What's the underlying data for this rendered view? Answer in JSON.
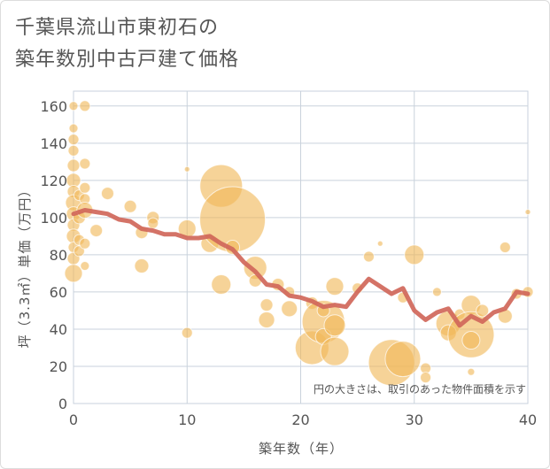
{
  "chart_data": {
    "type": "scatter",
    "title_lines": [
      "千葉県流山市東初石の",
      "築年数別中古戸建て価格"
    ],
    "xlabel": "築年数（年）",
    "ylabel": "坪（3.3㎡）単価（万円）",
    "xlim": [
      0,
      40
    ],
    "ylim": [
      0,
      168
    ],
    "xticks": [
      "0",
      "10",
      "20",
      "30",
      "40"
    ],
    "yticks": [
      "0",
      "20",
      "40",
      "60",
      "80",
      "100",
      "120",
      "140",
      "160"
    ],
    "annotation": "円の大きさは、取引のあった物件面積を示す",
    "colors": {
      "bubble": "#f0b858",
      "line": "#d0675a",
      "grid": "#c9d2dc",
      "text": "#555555"
    },
    "bubbles": [
      {
        "x": 0,
        "y": 160,
        "r": 5
      },
      {
        "x": 0,
        "y": 148,
        "r": 5
      },
      {
        "x": 0,
        "y": 142,
        "r": 6
      },
      {
        "x": 0,
        "y": 136,
        "r": 6
      },
      {
        "x": 0,
        "y": 128,
        "r": 7
      },
      {
        "x": 0,
        "y": 120,
        "r": 8
      },
      {
        "x": 0,
        "y": 114,
        "r": 7
      },
      {
        "x": 0,
        "y": 108,
        "r": 9
      },
      {
        "x": 0,
        "y": 102,
        "r": 8
      },
      {
        "x": 0,
        "y": 96,
        "r": 7
      },
      {
        "x": 0,
        "y": 90,
        "r": 8
      },
      {
        "x": 0,
        "y": 84,
        "r": 6
      },
      {
        "x": 0,
        "y": 78,
        "r": 7
      },
      {
        "x": 0,
        "y": 70,
        "r": 10
      },
      {
        "x": 0.5,
        "y": 112,
        "r": 6
      },
      {
        "x": 0.5,
        "y": 100,
        "r": 7
      },
      {
        "x": 0.5,
        "y": 88,
        "r": 6
      },
      {
        "x": 0.5,
        "y": 82,
        "r": 6
      },
      {
        "x": 1,
        "y": 160,
        "r": 6
      },
      {
        "x": 1,
        "y": 129,
        "r": 6
      },
      {
        "x": 1,
        "y": 116,
        "r": 6
      },
      {
        "x": 1,
        "y": 110,
        "r": 6
      },
      {
        "x": 1,
        "y": 104,
        "r": 9
      },
      {
        "x": 1,
        "y": 86,
        "r": 6
      },
      {
        "x": 1,
        "y": 74,
        "r": 5
      },
      {
        "x": 2,
        "y": 93,
        "r": 7
      },
      {
        "x": 3,
        "y": 113,
        "r": 7
      },
      {
        "x": 5,
        "y": 106,
        "r": 7
      },
      {
        "x": 6,
        "y": 92,
        "r": 7
      },
      {
        "x": 6,
        "y": 74,
        "r": 8
      },
      {
        "x": 7,
        "y": 100,
        "r": 7
      },
      {
        "x": 7,
        "y": 97,
        "r": 6
      },
      {
        "x": 10,
        "y": 94,
        "r": 10
      },
      {
        "x": 10,
        "y": 38,
        "r": 6
      },
      {
        "x": 10,
        "y": 126,
        "r": 3
      },
      {
        "x": 12,
        "y": 86,
        "r": 10
      },
      {
        "x": 13,
        "y": 117,
        "r": 24
      },
      {
        "x": 13,
        "y": 64,
        "r": 11
      },
      {
        "x": 14,
        "y": 99,
        "r": 37
      },
      {
        "x": 14,
        "y": 84,
        "r": 8
      },
      {
        "x": 16,
        "y": 73,
        "r": 13
      },
      {
        "x": 16,
        "y": 66,
        "r": 7
      },
      {
        "x": 17,
        "y": 53,
        "r": 7
      },
      {
        "x": 17,
        "y": 45,
        "r": 9
      },
      {
        "x": 18,
        "y": 64,
        "r": 7
      },
      {
        "x": 19,
        "y": 60,
        "r": 6
      },
      {
        "x": 19,
        "y": 51,
        "r": 9
      },
      {
        "x": 21,
        "y": 30,
        "r": 19
      },
      {
        "x": 21,
        "y": 54,
        "r": 7
      },
      {
        "x": 22,
        "y": 44,
        "r": 24
      },
      {
        "x": 22,
        "y": 36,
        "r": 9
      },
      {
        "x": 22,
        "y": 50,
        "r": 7
      },
      {
        "x": 23,
        "y": 63,
        "r": 10
      },
      {
        "x": 23,
        "y": 42,
        "r": 12
      },
      {
        "x": 23,
        "y": 28,
        "r": 16
      },
      {
        "x": 25,
        "y": 62,
        "r": 6
      },
      {
        "x": 26,
        "y": 79,
        "r": 6
      },
      {
        "x": 27,
        "y": 86,
        "r": 3
      },
      {
        "x": 28,
        "y": 22,
        "r": 26
      },
      {
        "x": 29,
        "y": 24,
        "r": 20
      },
      {
        "x": 29,
        "y": 57,
        "r": 6
      },
      {
        "x": 30,
        "y": 80,
        "r": 11
      },
      {
        "x": 31,
        "y": 19,
        "r": 6
      },
      {
        "x": 31,
        "y": 14,
        "r": 6
      },
      {
        "x": 32,
        "y": 60,
        "r": 5
      },
      {
        "x": 33,
        "y": 43,
        "r": 14
      },
      {
        "x": 33,
        "y": 38,
        "r": 9
      },
      {
        "x": 34,
        "y": 48,
        "r": 6
      },
      {
        "x": 35,
        "y": 53,
        "r": 11
      },
      {
        "x": 35,
        "y": 37,
        "r": 26
      },
      {
        "x": 35,
        "y": 34,
        "r": 10
      },
      {
        "x": 35,
        "y": 17,
        "r": 4
      },
      {
        "x": 36,
        "y": 50,
        "r": 7
      },
      {
        "x": 38,
        "y": 84,
        "r": 6
      },
      {
        "x": 38,
        "y": 47,
        "r": 8
      },
      {
        "x": 39,
        "y": 59,
        "r": 6
      },
      {
        "x": 40,
        "y": 60,
        "r": 6
      },
      {
        "x": 40,
        "y": 103,
        "r": 3
      }
    ],
    "trend": {
      "x": [
        0,
        1,
        2,
        3,
        4,
        5,
        6,
        7,
        8,
        9,
        10,
        11,
        12,
        13,
        14,
        15,
        16,
        17,
        18,
        19,
        20,
        21,
        22,
        23,
        24,
        25,
        26,
        27,
        28,
        29,
        30,
        31,
        32,
        33,
        34,
        35,
        36,
        37,
        38,
        39,
        40
      ],
      "y": [
        102,
        104,
        103,
        102,
        99,
        98,
        94,
        93,
        91,
        91,
        89,
        89,
        90,
        86,
        83,
        76,
        71,
        64,
        63,
        58,
        57,
        55,
        52,
        53,
        52,
        60,
        67,
        63,
        59,
        62,
        50,
        45,
        49,
        51,
        42,
        47,
        44,
        49,
        51,
        60,
        59
      ]
    }
  }
}
